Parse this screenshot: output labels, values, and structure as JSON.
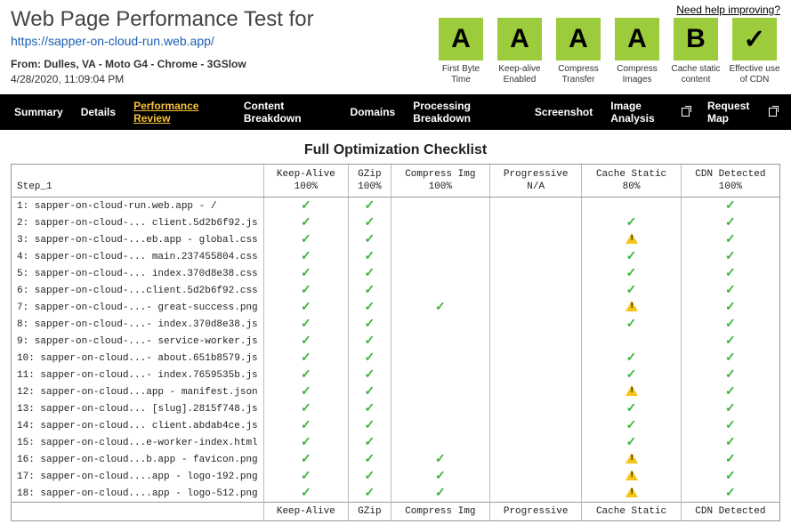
{
  "help_link": "Need help improving?",
  "title": "Web Page Performance Test for",
  "url": "https://sapper-on-cloud-run.web.app/",
  "from_label": "From:",
  "from_value": "Dulles, VA - Moto G4 - Chrome - 3GSlow",
  "timestamp": "4/28/2020, 11:09:04 PM",
  "grades": [
    {
      "letter": "A",
      "label": "First Byte Time",
      "bg": "#9ccc3c",
      "fg": "#000"
    },
    {
      "letter": "A",
      "label": "Keep-alive Enabled",
      "bg": "#9ccc3c",
      "fg": "#000"
    },
    {
      "letter": "A",
      "label": "Compress Transfer",
      "bg": "#9ccc3c",
      "fg": "#000"
    },
    {
      "letter": "A",
      "label": "Compress Images",
      "bg": "#9ccc3c",
      "fg": "#000"
    },
    {
      "letter": "B",
      "label": "Cache static content",
      "bg": "#9ccc3c",
      "fg": "#000"
    },
    {
      "letter": "✓",
      "label": "Effective use of CDN",
      "bg": "#9ccc3c",
      "fg": "#000"
    }
  ],
  "nav": [
    {
      "label": "Summary",
      "active": false,
      "ext": false
    },
    {
      "label": "Details",
      "active": false,
      "ext": false
    },
    {
      "label": "Performance Review",
      "active": true,
      "ext": false
    },
    {
      "label": "Content Breakdown",
      "active": false,
      "ext": false
    },
    {
      "label": "Domains",
      "active": false,
      "ext": false
    },
    {
      "label": "Processing Breakdown",
      "active": false,
      "ext": false
    },
    {
      "label": "Screenshot",
      "active": false,
      "ext": false
    },
    {
      "label": "Image Analysis",
      "active": false,
      "ext": true
    },
    {
      "label": "Request Map",
      "active": false,
      "ext": true
    }
  ],
  "checklist_title": "Full Optimization Checklist",
  "columns": [
    {
      "header": "Step_1",
      "pct": ""
    },
    {
      "header": "Keep-Alive",
      "pct": "100%"
    },
    {
      "header": "GZip",
      "pct": "100%"
    },
    {
      "header": "Compress Img",
      "pct": "100%"
    },
    {
      "header": "Progressive",
      "pct": "N/A"
    },
    {
      "header": "Cache Static",
      "pct": "80%"
    },
    {
      "header": "CDN Detected",
      "pct": "100%"
    }
  ],
  "rows": [
    {
      "label": "1: sapper-on-cloud-run.web.app - /",
      "cells": [
        "check",
        "check",
        "",
        "",
        "",
        "check"
      ]
    },
    {
      "label": "2: sapper-on-cloud-... client.5d2b6f92.js",
      "cells": [
        "check",
        "check",
        "",
        "",
        "check",
        "check"
      ]
    },
    {
      "label": "3: sapper-on-cloud-...eb.app - global.css",
      "cells": [
        "check",
        "check",
        "",
        "",
        "warn",
        "check"
      ]
    },
    {
      "label": "4: sapper-on-cloud-... main.237455804.css",
      "cells": [
        "check",
        "check",
        "",
        "",
        "check",
        "check"
      ]
    },
    {
      "label": "5: sapper-on-cloud-... index.370d8e38.css",
      "cells": [
        "check",
        "check",
        "",
        "",
        "check",
        "check"
      ]
    },
    {
      "label": "6: sapper-on-cloud-...client.5d2b6f92.css",
      "cells": [
        "check",
        "check",
        "",
        "",
        "check",
        "check"
      ]
    },
    {
      "label": "7: sapper-on-cloud-...- great-success.png",
      "cells": [
        "check",
        "check",
        "check",
        "",
        "warn",
        "check"
      ]
    },
    {
      "label": "8: sapper-on-cloud-...- index.370d8e38.js",
      "cells": [
        "check",
        "check",
        "",
        "",
        "check",
        "check"
      ]
    },
    {
      "label": "9: sapper-on-cloud-...- service-worker.js",
      "cells": [
        "check",
        "check",
        "",
        "",
        "",
        "check"
      ]
    },
    {
      "label": "10: sapper-on-cloud...- about.651b8579.js",
      "cells": [
        "check",
        "check",
        "",
        "",
        "check",
        "check"
      ]
    },
    {
      "label": "11: sapper-on-cloud...- index.7659535b.js",
      "cells": [
        "check",
        "check",
        "",
        "",
        "check",
        "check"
      ]
    },
    {
      "label": "12: sapper-on-cloud...app - manifest.json",
      "cells": [
        "check",
        "check",
        "",
        "",
        "warn",
        "check"
      ]
    },
    {
      "label": "13: sapper-on-cloud... [slug].2815f748.js",
      "cells": [
        "check",
        "check",
        "",
        "",
        "check",
        "check"
      ]
    },
    {
      "label": "14: sapper-on-cloud... client.abdab4ce.js",
      "cells": [
        "check",
        "check",
        "",
        "",
        "check",
        "check"
      ]
    },
    {
      "label": "15: sapper-on-cloud...e-worker-index.html",
      "cells": [
        "check",
        "check",
        "",
        "",
        "check",
        "check"
      ]
    },
    {
      "label": "16: sapper-on-cloud...b.app - favicon.png",
      "cells": [
        "check",
        "check",
        "check",
        "",
        "warn",
        "check"
      ]
    },
    {
      "label": "17: sapper-on-cloud....app - logo-192.png",
      "cells": [
        "check",
        "check",
        "check",
        "",
        "warn",
        "check"
      ]
    },
    {
      "label": "18: sapper-on-cloud....app - logo-512.png",
      "cells": [
        "check",
        "check",
        "check",
        "",
        "warn",
        "check"
      ]
    }
  ],
  "footer": [
    "",
    "Keep-Alive",
    "GZip",
    "Compress Img",
    "Progressive",
    "Cache Static",
    "CDN Detected"
  ]
}
